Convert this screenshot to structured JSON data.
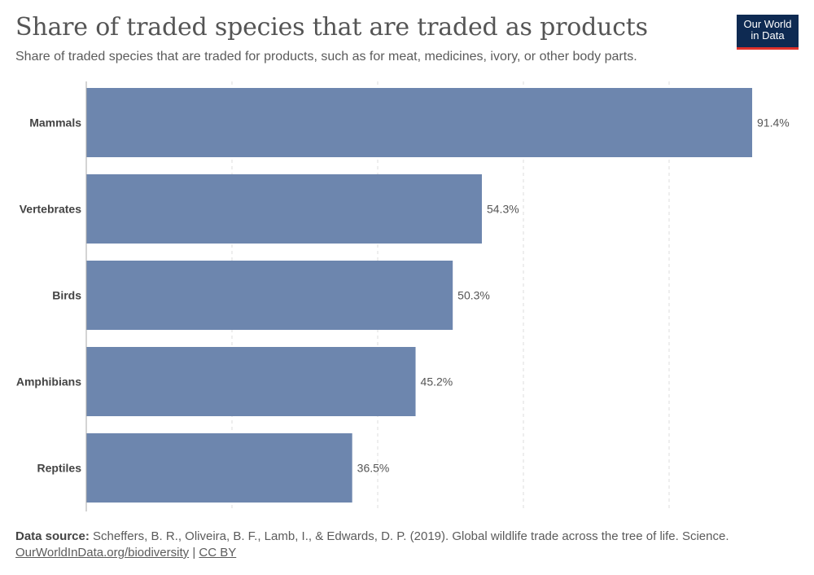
{
  "header": {
    "title": "Share of traded species that are traded as products",
    "subtitle": "Share of traded species that are traded for products, such as for meat, medicines, ivory, or other body parts.",
    "logo_line1": "Our World",
    "logo_line2": "in Data"
  },
  "footer": {
    "source_label": "Data source:",
    "source_text": "Scheffers, B. R., Oliveira, B. F., Lamb, I., & Edwards, D. P. (2019). Global wildlife trade across the tree of life. Science.",
    "link_text": "OurWorldInData.org/biodiversity",
    "separator": "|",
    "license": "CC BY"
  },
  "colors": {
    "bar": "#6d86ae",
    "grid": "#dddddd",
    "axis": "#aaaaaa",
    "label": "#444444",
    "value_label": "#555555"
  },
  "chart_data": {
    "type": "bar",
    "orientation": "horizontal",
    "categories": [
      "Mammals",
      "Vertebrates",
      "Birds",
      "Amphibians",
      "Reptiles"
    ],
    "values": [
      91.4,
      54.3,
      50.3,
      45.2,
      36.5
    ],
    "value_labels": [
      "91.4%",
      "54.3%",
      "50.3%",
      "45.2%",
      "36.5%"
    ],
    "unit": "%",
    "xlim": [
      0,
      100
    ],
    "grid": true
  }
}
